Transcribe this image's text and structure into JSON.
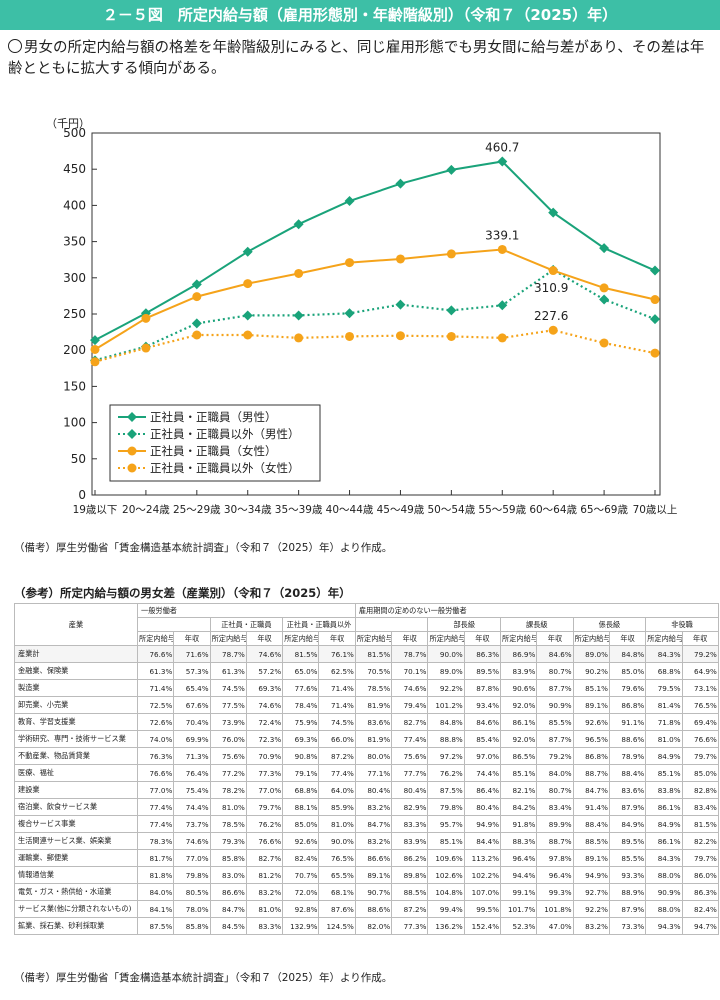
{
  "title": "２－５図　所定内給与額（雇用形態別・年齢階級別）（令和７（2025）年）",
  "summary": "男女の所定内給与額の格差を年齢階級別にみると、同じ雇用形態でも男女間に給与差があり、その差は年齢とともに拡大する傾向がある。",
  "chart_data": {
    "type": "line",
    "ylabel": "（千円）",
    "ylim": [
      0,
      500
    ],
    "yticks": [
      0,
      50,
      100,
      150,
      200,
      250,
      300,
      350,
      400,
      450,
      500
    ],
    "categories": [
      "19歳以下",
      "20～24歳",
      "25～29歳",
      "30～34歳",
      "35～39歳",
      "40～44歳",
      "45～49歳",
      "50～54歳",
      "55～59歳",
      "60～64歳",
      "65～69歳",
      "70歳以上"
    ],
    "grid": false,
    "legend_position": "bottom-left",
    "series": [
      {
        "name": "正社員・正職員（男性）",
        "color": "#1aa37a",
        "dash": false,
        "marker": "diamond",
        "values": [
          214,
          251,
          291,
          336,
          374,
          406,
          430,
          449,
          460.7,
          390,
          341,
          310
        ]
      },
      {
        "name": "正社員・正職員以外（男性）",
        "color": "#1aa37a",
        "dash": true,
        "marker": "diamond",
        "values": [
          186,
          205,
          237,
          248,
          248,
          251,
          263,
          255,
          262,
          310.9,
          270,
          243
        ]
      },
      {
        "name": "正社員・正職員（女性）",
        "color": "#f5a31a",
        "dash": false,
        "marker": "circle",
        "values": [
          201,
          244,
          274,
          292,
          306,
          321,
          326,
          333,
          339.1,
          310,
          286,
          270
        ]
      },
      {
        "name": "正社員・正職員以外（女性）",
        "color": "#f5a31a",
        "dash": true,
        "marker": "circle",
        "values": [
          184,
          203,
          221,
          221,
          217,
          219,
          220,
          219,
          217,
          227.6,
          210,
          196
        ]
      }
    ],
    "annotations": [
      {
        "series": 0,
        "index": 8,
        "text": "460.7"
      },
      {
        "series": 2,
        "index": 8,
        "text": "339.1"
      },
      {
        "series": 1,
        "index": 9,
        "text": "310.9"
      },
      {
        "series": 3,
        "index": 9,
        "text": "227.6"
      }
    ]
  },
  "note1": "（備考）厚生労働省「賃金構造基本統計調査」（令和７（2025）年）より作成。",
  "ref": {
    "title": "（参考）所定内給与額の男女差（産業別）（令和７（2025）年）",
    "h_industry": "産業",
    "h_general": "一般労働者",
    "h_fulltime": "正社員・正職員",
    "h_nonfull": "正社員・正職員以外",
    "h_indefinite": "雇用期間の定めのない一般労働者",
    "h_bucho": "部長級",
    "h_kacho": "課長級",
    "h_kakaricho": "係長級",
    "h_hiyakushoku": "非役職",
    "h_pay": "所定内給与",
    "h_annual": "年収",
    "rows": [
      {
        "name": "産業計",
        "v": [
          "76.6%",
          "71.6%",
          "78.7%",
          "74.6%",
          "81.5%",
          "76.1%",
          "81.5%",
          "78.7%",
          "90.0%",
          "86.3%",
          "86.9%",
          "84.6%",
          "89.0%",
          "84.8%",
          "84.3%",
          "79.2%"
        ]
      },
      {
        "name": "金融業、保険業",
        "v": [
          "61.3%",
          "57.3%",
          "61.3%",
          "57.2%",
          "65.0%",
          "62.5%",
          "70.5%",
          "70.1%",
          "89.0%",
          "89.5%",
          "83.9%",
          "80.7%",
          "90.2%",
          "85.0%",
          "68.8%",
          "64.9%"
        ]
      },
      {
        "name": "製造業",
        "v": [
          "71.4%",
          "65.4%",
          "74.5%",
          "69.3%",
          "77.6%",
          "71.4%",
          "78.5%",
          "74.6%",
          "92.2%",
          "87.8%",
          "90.6%",
          "87.7%",
          "85.1%",
          "79.6%",
          "79.5%",
          "73.1%"
        ]
      },
      {
        "name": "卸売業、小売業",
        "v": [
          "72.5%",
          "67.6%",
          "77.5%",
          "74.6%",
          "78.4%",
          "71.4%",
          "81.9%",
          "79.4%",
          "101.2%",
          "93.4%",
          "92.0%",
          "90.9%",
          "89.1%",
          "86.8%",
          "81.4%",
          "76.5%"
        ]
      },
      {
        "name": "教育、学習支援業",
        "v": [
          "72.6%",
          "70.4%",
          "73.9%",
          "72.4%",
          "75.9%",
          "74.5%",
          "83.6%",
          "82.7%",
          "84.8%",
          "84.6%",
          "86.1%",
          "85.5%",
          "92.6%",
          "91.1%",
          "71.8%",
          "69.4%"
        ]
      },
      {
        "name": "学術研究、専門・技術サービス業",
        "v": [
          "74.0%",
          "69.9%",
          "76.0%",
          "72.3%",
          "69.3%",
          "66.0%",
          "81.9%",
          "77.4%",
          "88.8%",
          "85.4%",
          "92.0%",
          "87.7%",
          "96.5%",
          "88.6%",
          "81.0%",
          "76.6%"
        ]
      },
      {
        "name": "不動産業、物品賃貸業",
        "v": [
          "76.3%",
          "71.3%",
          "75.6%",
          "70.9%",
          "90.8%",
          "87.2%",
          "80.0%",
          "75.6%",
          "97.2%",
          "97.0%",
          "86.5%",
          "79.2%",
          "86.8%",
          "78.9%",
          "84.9%",
          "79.7%"
        ]
      },
      {
        "name": "医療、福祉",
        "v": [
          "76.6%",
          "76.4%",
          "77.2%",
          "77.3%",
          "79.1%",
          "77.4%",
          "77.1%",
          "77.7%",
          "76.2%",
          "74.4%",
          "85.1%",
          "84.0%",
          "88.7%",
          "88.4%",
          "85.1%",
          "85.0%"
        ]
      },
      {
        "name": "建設業",
        "v": [
          "77.0%",
          "75.4%",
          "78.2%",
          "77.0%",
          "68.8%",
          "64.0%",
          "80.4%",
          "80.4%",
          "87.5%",
          "86.4%",
          "82.1%",
          "80.7%",
          "84.7%",
          "83.6%",
          "83.8%",
          "82.8%"
        ]
      },
      {
        "name": "宿泊業、飲食サービス業",
        "v": [
          "77.4%",
          "74.4%",
          "81.0%",
          "79.7%",
          "88.1%",
          "85.9%",
          "83.2%",
          "82.9%",
          "79.8%",
          "80.4%",
          "84.2%",
          "83.4%",
          "91.4%",
          "87.9%",
          "86.1%",
          "83.4%"
        ]
      },
      {
        "name": "複合サービス事業",
        "v": [
          "77.4%",
          "73.7%",
          "78.5%",
          "76.2%",
          "85.0%",
          "81.0%",
          "84.7%",
          "83.3%",
          "95.7%",
          "94.9%",
          "91.8%",
          "89.9%",
          "88.4%",
          "84.9%",
          "84.9%",
          "81.5%"
        ]
      },
      {
        "name": "生活関連サービス業、娯楽業",
        "v": [
          "78.3%",
          "74.6%",
          "79.3%",
          "76.6%",
          "92.6%",
          "90.0%",
          "83.2%",
          "83.9%",
          "85.1%",
          "84.4%",
          "88.3%",
          "88.7%",
          "88.5%",
          "89.5%",
          "86.1%",
          "82.2%"
        ]
      },
      {
        "name": "運輸業、郵便業",
        "v": [
          "81.7%",
          "77.0%",
          "85.8%",
          "82.7%",
          "82.4%",
          "76.5%",
          "86.6%",
          "86.2%",
          "109.6%",
          "113.2%",
          "96.4%",
          "97.8%",
          "89.1%",
          "85.5%",
          "84.3%",
          "79.7%"
        ]
      },
      {
        "name": "情報通信業",
        "v": [
          "81.8%",
          "79.8%",
          "83.0%",
          "81.2%",
          "70.7%",
          "65.5%",
          "89.1%",
          "89.8%",
          "102.6%",
          "102.2%",
          "94.4%",
          "96.4%",
          "94.9%",
          "93.3%",
          "88.0%",
          "86.0%"
        ]
      },
      {
        "name": "電気・ガス・熱供給・水道業",
        "v": [
          "84.0%",
          "80.5%",
          "86.6%",
          "83.2%",
          "72.0%",
          "68.1%",
          "90.7%",
          "88.5%",
          "104.8%",
          "107.0%",
          "99.1%",
          "99.3%",
          "92.7%",
          "88.9%",
          "90.9%",
          "86.3%"
        ]
      },
      {
        "name": "サービス業(他に分類されないもの)",
        "v": [
          "84.1%",
          "78.0%",
          "84.7%",
          "81.0%",
          "92.8%",
          "87.6%",
          "88.6%",
          "87.2%",
          "99.4%",
          "99.5%",
          "101.7%",
          "101.8%",
          "92.2%",
          "87.9%",
          "88.0%",
          "82.4%"
        ]
      },
      {
        "name": "鉱業、採石業、砂利採取業",
        "v": [
          "87.5%",
          "85.8%",
          "84.5%",
          "83.3%",
          "132.9%",
          "124.5%",
          "82.0%",
          "77.3%",
          "136.2%",
          "152.4%",
          "52.3%",
          "47.0%",
          "83.2%",
          "73.3%",
          "94.3%",
          "94.7%"
        ]
      }
    ]
  },
  "note2": "（備考）厚生労働省「賃金構造基本統計調査」（令和７（2025）年）より作成。"
}
